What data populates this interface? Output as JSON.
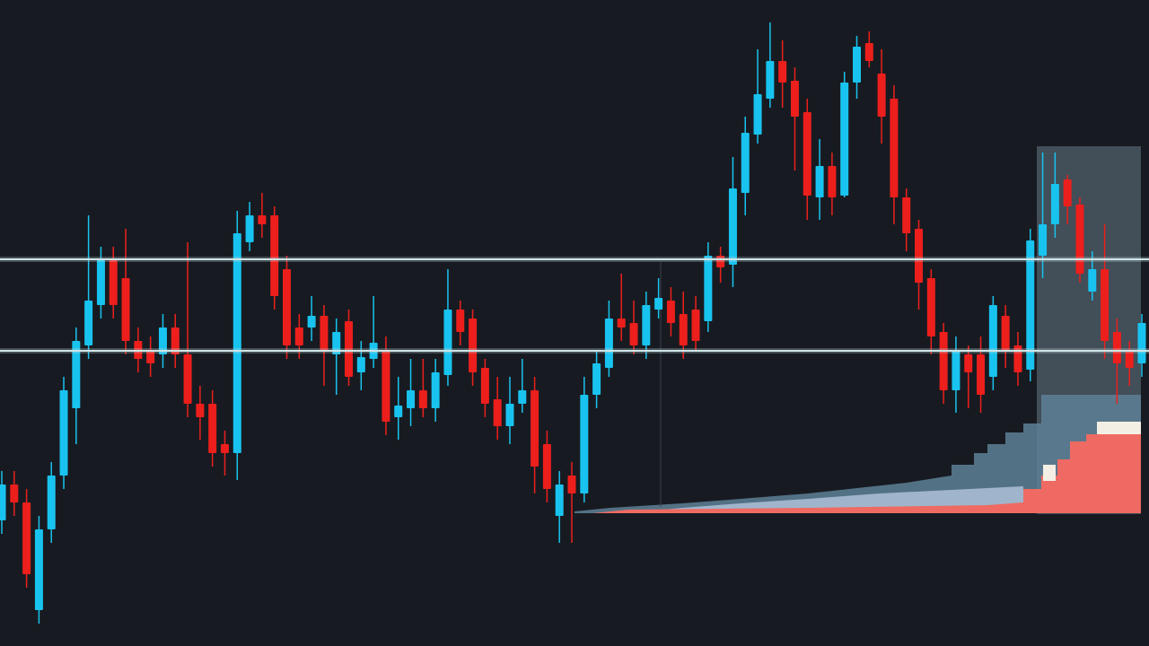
{
  "chart_data": {
    "type": "candlestick",
    "open": [
      140,
      180,
      160,
      40,
      130,
      190,
      265,
      335,
      380,
      430,
      410,
      340,
      330,
      325,
      355,
      325,
      270,
      270,
      225,
      215,
      450,
      480,
      480,
      420,
      355,
      355,
      368,
      325,
      362,
      305,
      320,
      330,
      255,
      265,
      285,
      265,
      302,
      375,
      365,
      310,
      275,
      245,
      270,
      285,
      225,
      145,
      190,
      170,
      280,
      310,
      365,
      360,
      335,
      375,
      385,
      370,
      375,
      362,
      435,
      425,
      505,
      570,
      610,
      652,
      630,
      595,
      500,
      535,
      502,
      628,
      672,
      638,
      610,
      500,
      465,
      410,
      350,
      285,
      325,
      325,
      300,
      368,
      335,
      308,
      435,
      470,
      520,
      492,
      395,
      420,
      350,
      330,
      315
    ],
    "high": [
      195,
      195,
      175,
      145,
      205,
      300,
      355,
      480,
      445,
      445,
      465,
      355,
      345,
      370,
      370,
      450,
      290,
      285,
      240,
      485,
      495,
      505,
      490,
      435,
      370,
      390,
      380,
      365,
      375,
      340,
      390,
      345,
      300,
      320,
      320,
      320,
      420,
      385,
      375,
      320,
      300,
      300,
      320,
      300,
      240,
      195,
      205,
      300,
      330,
      385,
      415,
      385,
      395,
      410,
      400,
      395,
      390,
      450,
      445,
      545,
      590,
      665,
      695,
      675,
      645,
      610,
      565,
      550,
      640,
      680,
      685,
      665,
      625,
      510,
      475,
      420,
      360,
      345,
      335,
      345,
      390,
      380,
      350,
      465,
      550,
      550,
      525,
      500,
      440,
      470,
      365,
      340,
      370
    ],
    "low": [
      125,
      145,
      65,
      25,
      115,
      175,
      225,
      320,
      365,
      365,
      325,
      305,
      300,
      310,
      310,
      255,
      230,
      200,
      190,
      185,
      440,
      455,
      375,
      320,
      320,
      340,
      290,
      280,
      290,
      285,
      310,
      235,
      230,
      245,
      255,
      250,
      290,
      335,
      290,
      255,
      230,
      225,
      260,
      170,
      160,
      115,
      115,
      160,
      265,
      300,
      340,
      325,
      320,
      365,
      345,
      320,
      330,
      350,
      405,
      400,
      480,
      560,
      600,
      600,
      530,
      475,
      475,
      480,
      500,
      610,
      645,
      560,
      470,
      440,
      375,
      325,
      270,
      260,
      265,
      260,
      285,
      310,
      290,
      295,
      410,
      455,
      470,
      405,
      385,
      320,
      270,
      290,
      300
    ],
    "close": [
      180,
      160,
      80,
      130,
      190,
      285,
      340,
      385,
      430,
      380,
      340,
      320,
      315,
      355,
      325,
      270,
      255,
      215,
      215,
      460,
      480,
      470,
      390,
      335,
      335,
      368,
      330,
      350,
      300,
      322,
      338,
      250,
      268,
      285,
      265,
      305,
      375,
      350,
      305,
      270,
      245,
      270,
      285,
      200,
      175,
      180,
      170,
      280,
      315,
      365,
      355,
      335,
      380,
      388,
      360,
      335,
      340,
      435,
      422,
      510,
      572,
      615,
      652,
      628,
      590,
      502,
      535,
      500,
      628,
      668,
      652,
      590,
      500,
      460,
      405,
      345,
      285,
      330,
      305,
      280,
      380,
      330,
      305,
      452,
      470,
      515,
      490,
      415,
      420,
      340,
      315,
      310,
      360
    ],
    "up_color": "#19c3ef",
    "down_color": "#ec1f1c",
    "level_color": "#cfe6e8",
    "levels": [
      431,
      329
    ],
    "ylim": [
      0,
      720
    ]
  }
}
